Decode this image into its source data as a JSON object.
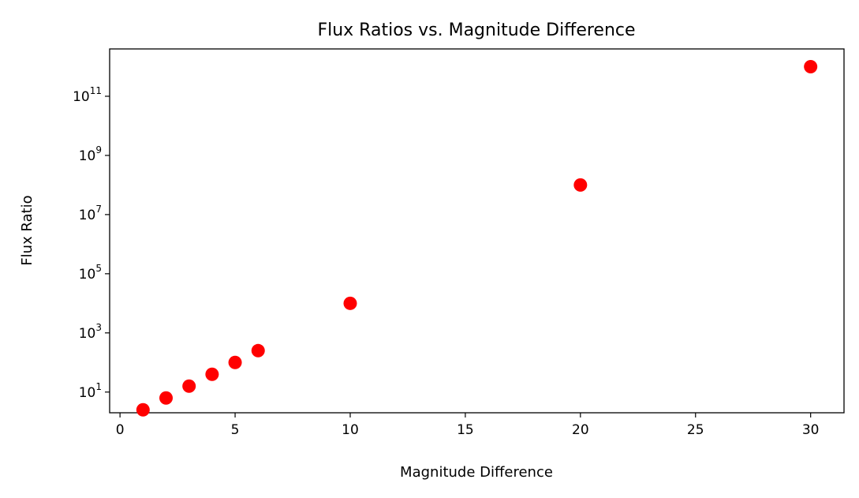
{
  "chart_data": {
    "type": "scatter",
    "title": "Flux Ratios vs. Magnitude Difference",
    "xlabel": "Magnitude Difference",
    "ylabel": "Flux Ratio",
    "yscale": "log",
    "xlim": [
      -0.45,
      31.45
    ],
    "ylim_log10": [
      0.3,
      12.6
    ],
    "x_ticks": [
      0,
      5,
      10,
      15,
      20,
      25,
      30
    ],
    "y_ticks": [
      {
        "base": "10",
        "exp": "1",
        "value": 10
      },
      {
        "base": "10",
        "exp": "3",
        "value": 1000
      },
      {
        "base": "10",
        "exp": "5",
        "value": 100000
      },
      {
        "base": "10",
        "exp": "7",
        "value": 10000000
      },
      {
        "base": "10",
        "exp": "9",
        "value": 1000000000
      },
      {
        "base": "10",
        "exp": "11",
        "value": 100000000000
      }
    ],
    "marker_color": "#ff0000",
    "grid": false,
    "points": [
      {
        "x": 1,
        "y": 2.512
      },
      {
        "x": 2,
        "y": 6.31
      },
      {
        "x": 3,
        "y": 15.85
      },
      {
        "x": 4,
        "y": 39.81
      },
      {
        "x": 5,
        "y": 100
      },
      {
        "x": 6,
        "y": 251.2
      },
      {
        "x": 10,
        "y": 10000
      },
      {
        "x": 20,
        "y": 100000000
      },
      {
        "x": 30,
        "y": 1000000000000
      }
    ]
  }
}
